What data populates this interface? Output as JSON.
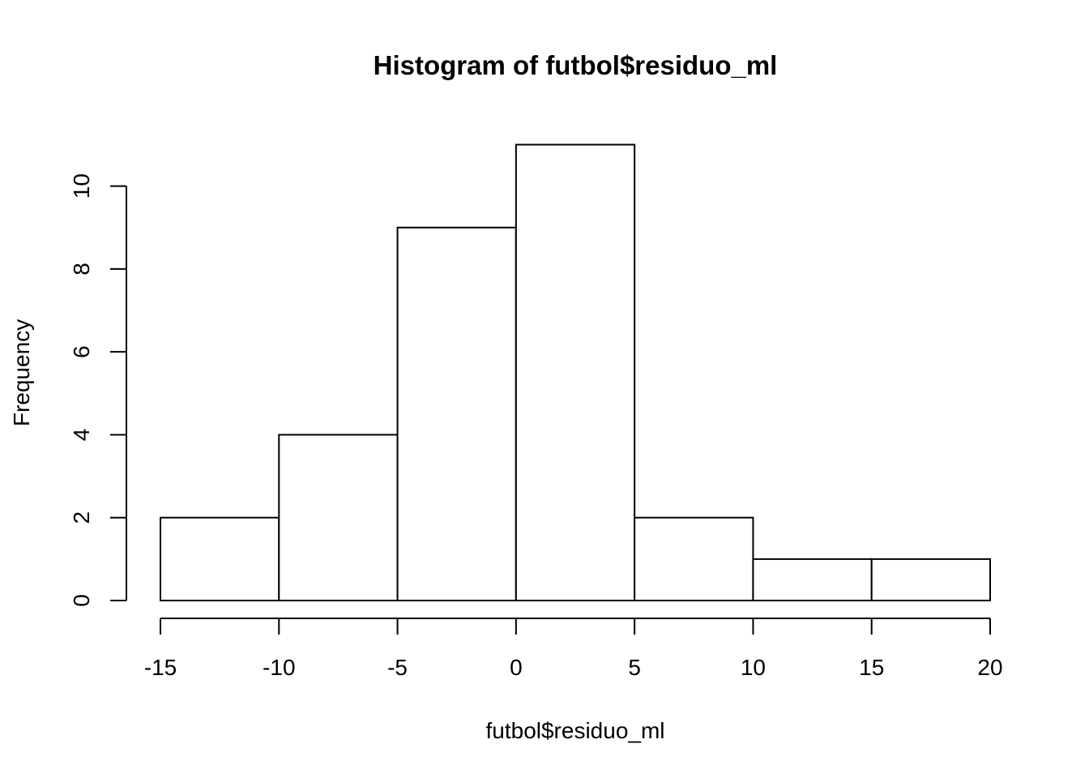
{
  "chart_data": {
    "type": "bar",
    "title": "Histogram of futbol$residuo_ml",
    "xlabel": "futbol$residuo_ml",
    "ylabel": "Frequency",
    "bins": [
      {
        "from": -15,
        "to": -10,
        "count": 2
      },
      {
        "from": -10,
        "to": -5,
        "count": 4
      },
      {
        "from": -5,
        "to": 0,
        "count": 9
      },
      {
        "from": 0,
        "to": 5,
        "count": 11
      },
      {
        "from": 5,
        "to": 10,
        "count": 2
      },
      {
        "from": 10,
        "to": 15,
        "count": 1
      },
      {
        "from": 15,
        "to": 20,
        "count": 1
      }
    ],
    "xlim": [
      -15,
      20
    ],
    "ylim": [
      0,
      11
    ],
    "x_ticks": [
      -15,
      -10,
      -5,
      0,
      5,
      10,
      15,
      20
    ],
    "x_tick_labels": [
      "-15",
      "-10",
      "-5",
      "0",
      "5",
      "10",
      "15",
      "20"
    ],
    "y_ticks": [
      0,
      2,
      4,
      6,
      8,
      10
    ],
    "y_tick_labels": [
      "0",
      "2",
      "4",
      "6",
      "8",
      "10"
    ],
    "grid": false,
    "bar_fill": "#ffffff",
    "bar_stroke": "#000000"
  }
}
